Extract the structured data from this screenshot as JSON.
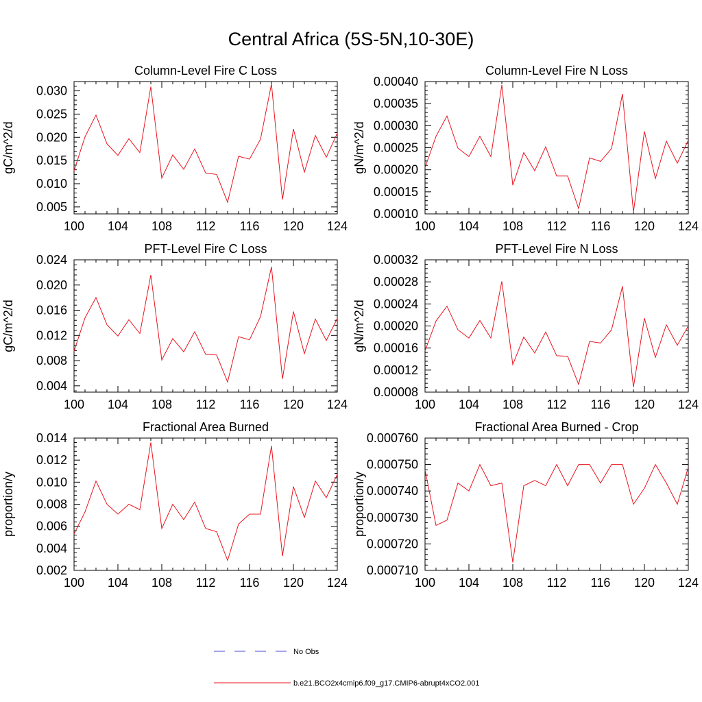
{
  "figure": {
    "title": "Central Africa (5S-5N,10-30E)"
  },
  "legend": {
    "obs_label": "No Obs",
    "obs_color": "#4a4ad0",
    "model_label": "b.e21.BCO2x4cmip6.f09_g17.CMIP6-abrupt4xCO2.001",
    "model_color": "#e8141e"
  },
  "chart_data": [
    {
      "type": "line",
      "title": "Column-Level Fire C Loss",
      "xlabel": "",
      "ylabel": "gC/m^2/d",
      "xlim": [
        100,
        124
      ],
      "ylim": [
        0.0035,
        0.032
      ],
      "xticks": [
        "100",
        "104",
        "108",
        "112",
        "116",
        "120",
        "124"
      ],
      "yticks": [
        "0.005",
        "0.010",
        "0.015",
        "0.020",
        "0.025",
        "0.030"
      ],
      "x": [
        100,
        101,
        102,
        103,
        104,
        105,
        106,
        107,
        108,
        109,
        110,
        111,
        112,
        113,
        114,
        115,
        116,
        117,
        118,
        119,
        120,
        121,
        122,
        123,
        124
      ],
      "series": [
        {
          "name": "b.e21.BCO2x4cmip6.f09_g17.CMIP6-abrupt4xCO2.001",
          "values": [
            0.0128,
            0.0201,
            0.0248,
            0.0186,
            0.0161,
            0.0197,
            0.0167,
            0.0309,
            0.0112,
            0.0162,
            0.0131,
            0.0175,
            0.0123,
            0.012,
            0.006,
            0.0159,
            0.0153,
            0.0196,
            0.0315,
            0.0066,
            0.0218,
            0.0125,
            0.0204,
            0.0157,
            0.0209
          ]
        }
      ]
    },
    {
      "type": "line",
      "title": "Column-Level Fire N Loss",
      "xlabel": "",
      "ylabel": "gN/m^2/d",
      "xlim": [
        100,
        124
      ],
      "ylim": [
        0.0001,
        0.0004
      ],
      "xticks": [
        "100",
        "104",
        "108",
        "112",
        "116",
        "120",
        "124"
      ],
      "yticks": [
        "0.00010",
        "0.00015",
        "0.00020",
        "0.00025",
        "0.00030",
        "0.00035",
        "0.00040"
      ],
      "x": [
        100,
        101,
        102,
        103,
        104,
        105,
        106,
        107,
        108,
        109,
        110,
        111,
        112,
        113,
        114,
        115,
        116,
        117,
        118,
        119,
        120,
        121,
        122,
        123,
        124
      ],
      "series": [
        {
          "name": "b.e21.BCO2x4cmip6.f09_g17.CMIP6-abrupt4xCO2.001",
          "values": [
            0.000205,
            0.000276,
            0.000322,
            0.000249,
            0.00023,
            0.000276,
            0.00023,
            0.000392,
            0.000165,
            0.000239,
            0.000198,
            0.000252,
            0.000186,
            0.000186,
            0.000112,
            0.000227,
            0.000219,
            0.000248,
            0.000372,
            0.000104,
            0.000287,
            0.00018,
            0.000265,
            0.000215,
            0.000267
          ]
        }
      ]
    },
    {
      "type": "line",
      "title": "PFT-Level Fire C Loss",
      "xlabel": "",
      "ylabel": "gC/m^2/d",
      "xlim": [
        100,
        124
      ],
      "ylim": [
        0.003,
        0.024
      ],
      "xticks": [
        "100",
        "104",
        "108",
        "112",
        "116",
        "120",
        "124"
      ],
      "yticks": [
        "0.004",
        "0.008",
        "0.012",
        "0.016",
        "0.020",
        "0.024"
      ],
      "x": [
        100,
        101,
        102,
        103,
        104,
        105,
        106,
        107,
        108,
        109,
        110,
        111,
        112,
        113,
        114,
        115,
        116,
        117,
        118,
        119,
        120,
        121,
        122,
        123,
        124
      ],
      "series": [
        {
          "name": "b.e21.BCO2x4cmip6.f09_g17.CMIP6-abrupt4xCO2.001",
          "values": [
            0.0095,
            0.0148,
            0.018,
            0.0137,
            0.0119,
            0.0145,
            0.0123,
            0.0216,
            0.0081,
            0.0115,
            0.0094,
            0.0126,
            0.009,
            0.0089,
            0.0046,
            0.0118,
            0.0113,
            0.015,
            0.0229,
            0.0051,
            0.0158,
            0.0091,
            0.0146,
            0.0112,
            0.0147
          ]
        }
      ]
    },
    {
      "type": "line",
      "title": "PFT-Level Fire N Loss",
      "xlabel": "",
      "ylabel": "gN/m^2/d",
      "xlim": [
        100,
        124
      ],
      "ylim": [
        8e-05,
        0.00032
      ],
      "xticks": [
        "100",
        "104",
        "108",
        "112",
        "116",
        "120",
        "124"
      ],
      "yticks": [
        "0.00008",
        "0.00012",
        "0.00016",
        "0.00020",
        "0.00024",
        "0.00028",
        "0.00032"
      ],
      "x": [
        100,
        101,
        102,
        103,
        104,
        105,
        106,
        107,
        108,
        109,
        110,
        111,
        112,
        113,
        114,
        115,
        116,
        117,
        118,
        119,
        120,
        121,
        122,
        123,
        124
      ],
      "series": [
        {
          "name": "b.e21.BCO2x4cmip6.f09_g17.CMIP6-abrupt4xCO2.001",
          "values": [
            0.000155,
            0.000209,
            0.000236,
            0.000193,
            0.000178,
            0.00021,
            0.000178,
            0.000281,
            0.00013,
            0.00018,
            0.000151,
            0.000189,
            0.000146,
            0.000145,
            9.4e-05,
            0.000172,
            0.000169,
            0.000193,
            0.000272,
            8.9e-05,
            0.000214,
            0.000143,
            0.000202,
            0.000165,
            0.0002
          ]
        }
      ]
    },
    {
      "type": "line",
      "title": "Fractional Area Burned",
      "xlabel": "",
      "ylabel": "proportion/y",
      "xlim": [
        100,
        124
      ],
      "ylim": [
        0.002,
        0.014
      ],
      "xticks": [
        "100",
        "104",
        "108",
        "112",
        "116",
        "120",
        "124"
      ],
      "yticks": [
        "0.002",
        "0.004",
        "0.006",
        "0.008",
        "0.010",
        "0.012",
        "0.014"
      ],
      "x": [
        100,
        101,
        102,
        103,
        104,
        105,
        106,
        107,
        108,
        109,
        110,
        111,
        112,
        113,
        114,
        115,
        116,
        117,
        118,
        119,
        120,
        121,
        122,
        123,
        124
      ],
      "series": [
        {
          "name": "b.e21.BCO2x4cmip6.f09_g17.CMIP6-abrupt4xCO2.001",
          "values": [
            0.0053,
            0.0073,
            0.0101,
            0.008,
            0.0071,
            0.008,
            0.0075,
            0.0136,
            0.0058,
            0.008,
            0.0066,
            0.0082,
            0.0058,
            0.0055,
            0.0029,
            0.0062,
            0.0071,
            0.0071,
            0.0133,
            0.0033,
            0.0096,
            0.0068,
            0.0101,
            0.0086,
            0.0107
          ]
        }
      ]
    },
    {
      "type": "line",
      "title": "Fractional Area Burned - Crop",
      "xlabel": "",
      "ylabel": "proportion/y",
      "xlim": [
        100,
        124
      ],
      "ylim": [
        0.00071,
        0.00076
      ],
      "xticks": [
        "100",
        "104",
        "108",
        "112",
        "116",
        "120",
        "124"
      ],
      "yticks": [
        "0.000710",
        "0.000720",
        "0.000730",
        "0.000740",
        "0.000750",
        "0.000760"
      ],
      "x": [
        100,
        101,
        102,
        103,
        104,
        105,
        106,
        107,
        108,
        109,
        110,
        111,
        112,
        113,
        114,
        115,
        116,
        117,
        118,
        119,
        120,
        121,
        122,
        123,
        124
      ],
      "series": [
        {
          "name": "b.e21.BCO2x4cmip6.f09_g17.CMIP6-abrupt4xCO2.001",
          "values": [
            0.000748,
            0.000727,
            0.000729,
            0.000743,
            0.00074,
            0.00075,
            0.000742,
            0.000743,
            0.000713,
            0.000742,
            0.000744,
            0.000742,
            0.00075,
            0.000742,
            0.00075,
            0.00075,
            0.000743,
            0.00075,
            0.00075,
            0.000735,
            0.000741,
            0.00075,
            0.000743,
            0.000735,
            0.000749
          ]
        }
      ]
    }
  ]
}
